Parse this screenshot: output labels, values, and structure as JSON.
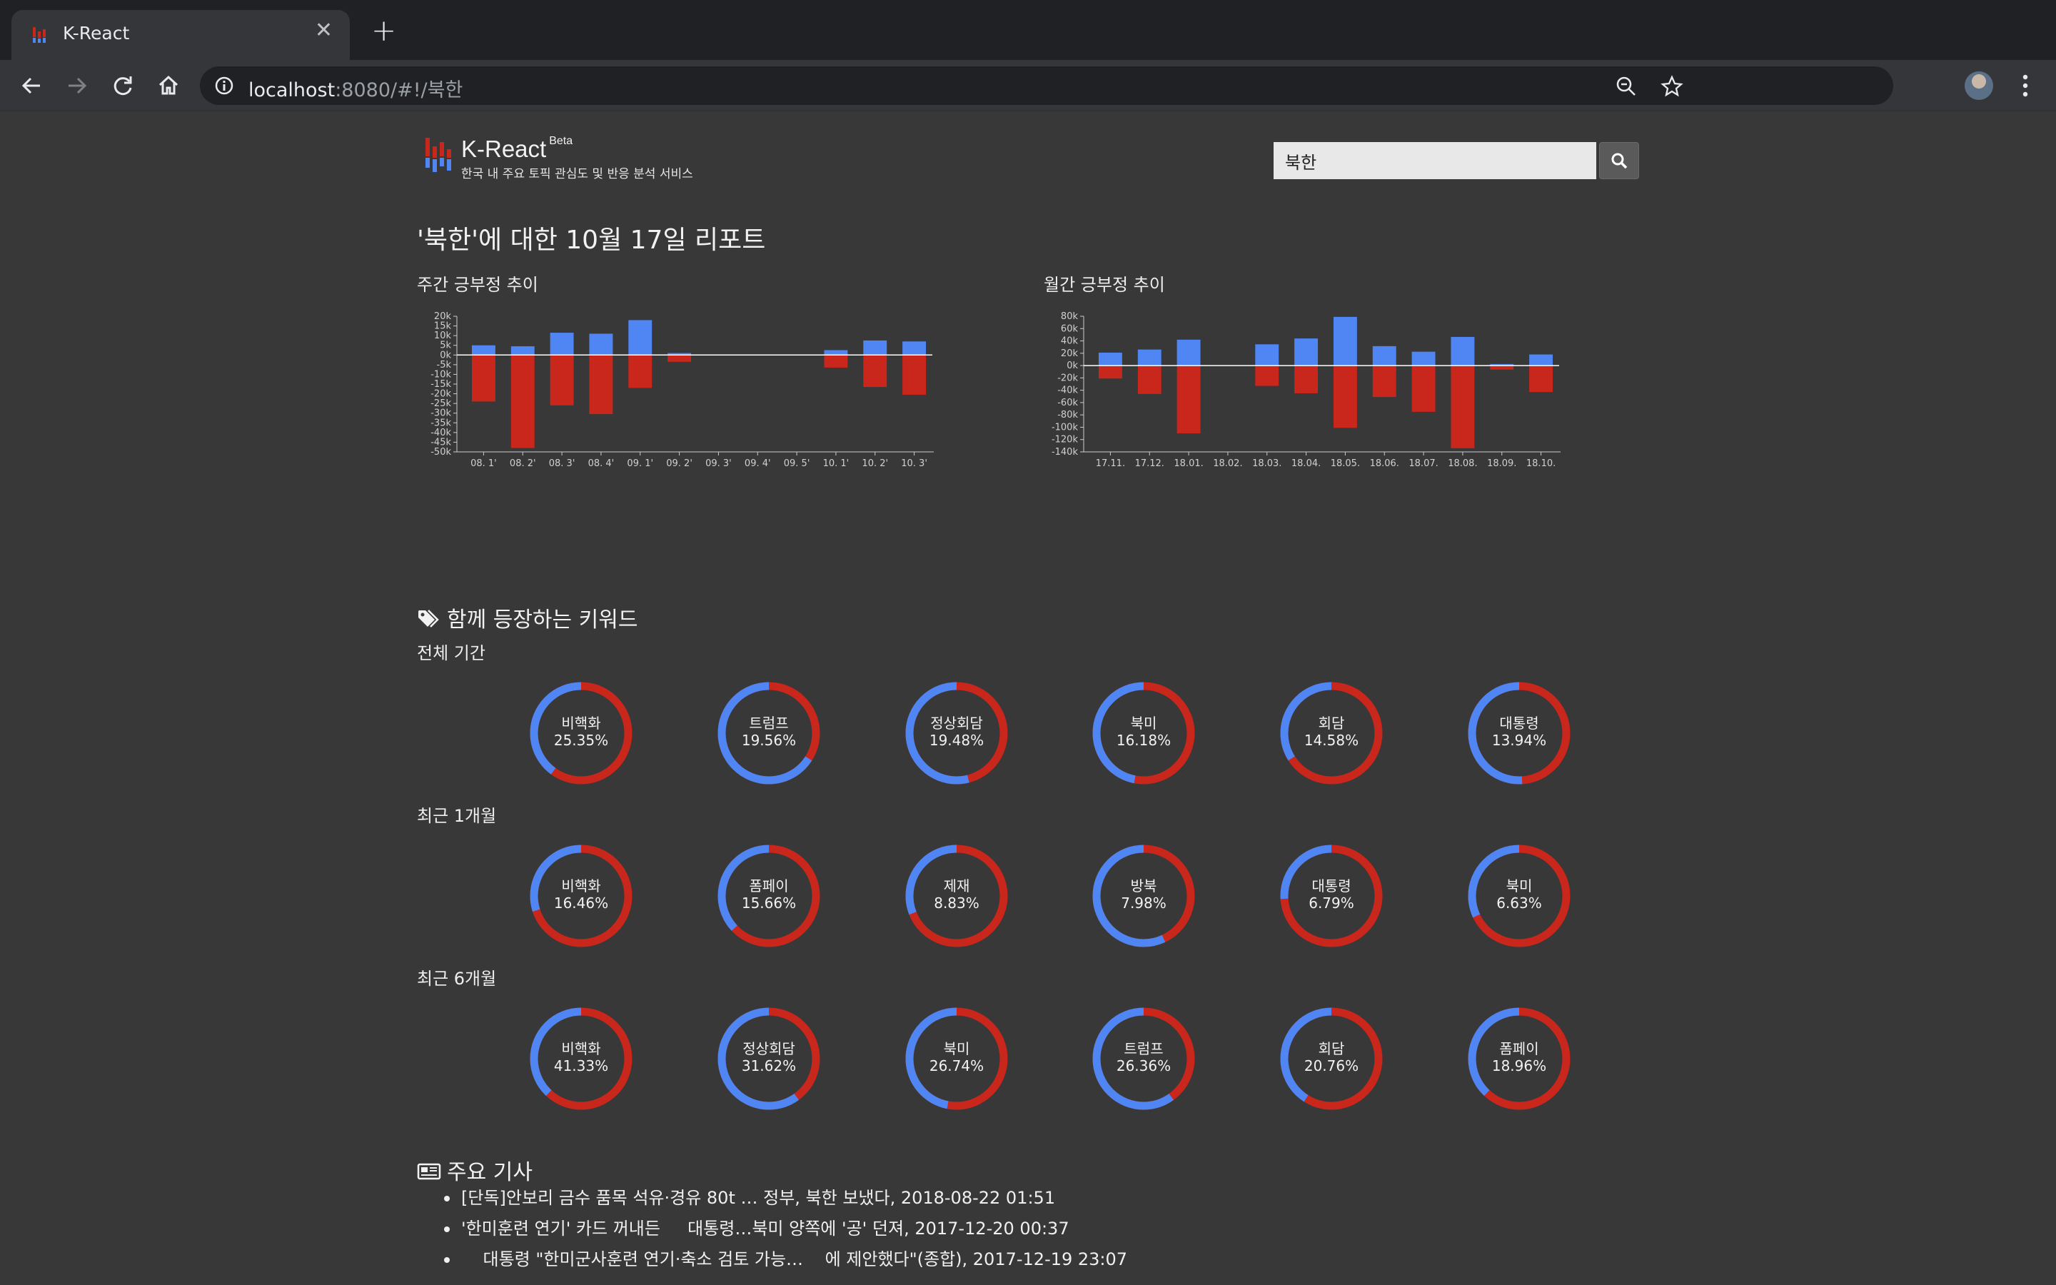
{
  "browser": {
    "tab_title": "K-React",
    "tab_close": "✕",
    "new_tab": "+",
    "url_host": "localhost",
    "url_rest": ":8080/#!/북한"
  },
  "header": {
    "brand": "K-React",
    "beta": "Beta",
    "subtitle": "한국 내 주요 토픽 관심도 및 반응 분석 서비스",
    "search_value": "북한"
  },
  "report": {
    "title": "'북한'에 대한 10월 17일 리포트"
  },
  "colors": {
    "positive": "#4f86f3",
    "negative": "#c9261c",
    "background": "#383838"
  },
  "chart_data": [
    {
      "type": "bar",
      "title": "주간 긍부정 추이",
      "categories": [
        "08. 1'",
        "08. 2'",
        "08. 3'",
        "08. 4'",
        "09. 1'",
        "09. 2'",
        "09. 3'",
        "09. 4'",
        "09. 5'",
        "10. 1'",
        "10. 2'",
        "10. 3'"
      ],
      "series": [
        {
          "name": "positive",
          "values": [
            5000,
            4500,
            11500,
            11000,
            18000,
            1000,
            0,
            0,
            0,
            2500,
            7500,
            7000
          ]
        },
        {
          "name": "negative",
          "values": [
            -24000,
            -48000,
            -26000,
            -30500,
            -17000,
            -3500,
            0,
            0,
            0,
            -6500,
            -16500,
            -20500
          ]
        }
      ],
      "ylim": [
        -50000,
        20000
      ],
      "yticks": [
        "20k",
        "15k",
        "10k",
        "5k",
        "0k",
        "-5k",
        "-10k",
        "-15k",
        "-20k",
        "-25k",
        "-30k",
        "-35k",
        "-40k",
        "-45k",
        "-50k"
      ]
    },
    {
      "type": "bar",
      "title": "월간 긍부정 추이",
      "categories": [
        "17.11.",
        "17.12.",
        "18.01.",
        "18.02.",
        "18.03.",
        "18.04.",
        "18.05.",
        "18.06.",
        "18.07.",
        "18.08.",
        "18.09.",
        "18.10."
      ],
      "series": [
        {
          "name": "positive",
          "values": [
            21000,
            26000,
            42000,
            0,
            34500,
            44000,
            79000,
            31500,
            22500,
            46500,
            2500,
            18000
          ]
        },
        {
          "name": "negative",
          "values": [
            -21000,
            -46000,
            -110000,
            0,
            -33000,
            -45000,
            -101000,
            -51000,
            -75000,
            -134000,
            -6500,
            -43000
          ]
        }
      ],
      "ylim": [
        -140000,
        80000
      ],
      "yticks": [
        "80k",
        "60k",
        "40k",
        "20k",
        "0k",
        "-20k",
        "-40k",
        "-60k",
        "-80k",
        "-100k",
        "-120k",
        "-140k"
      ]
    }
  ],
  "keywords": {
    "title": "함께 등장하는 키워드",
    "periods": [
      {
        "label": "전체 기간",
        "items": [
          {
            "word": "비핵화",
            "pct": "25.35%",
            "positive_ratio": 0.4
          },
          {
            "word": "트럼프",
            "pct": "19.56%",
            "positive_ratio": 0.66
          },
          {
            "word": "정상회담",
            "pct": "19.48%",
            "positive_ratio": 0.54
          },
          {
            "word": "북미",
            "pct": "16.18%",
            "positive_ratio": 0.47
          },
          {
            "word": "회담",
            "pct": "14.58%",
            "positive_ratio": 0.34
          },
          {
            "word": "대통령",
            "pct": "13.94%",
            "positive_ratio": 0.51
          }
        ]
      },
      {
        "label": "최근 1개월",
        "items": [
          {
            "word": "비핵화",
            "pct": "16.46%",
            "positive_ratio": 0.3
          },
          {
            "word": "폼페이",
            "pct": "15.66%",
            "positive_ratio": 0.37
          },
          {
            "word": "제재",
            "pct": "8.83%",
            "positive_ratio": 0.31
          },
          {
            "word": "방북",
            "pct": "7.98%",
            "positive_ratio": 0.57
          },
          {
            "word": "대통령",
            "pct": "6.79%",
            "positive_ratio": 0.26
          },
          {
            "word": "북미",
            "pct": "6.63%",
            "positive_ratio": 0.32
          }
        ]
      },
      {
        "label": "최근 6개월",
        "items": [
          {
            "word": "비핵화",
            "pct": "41.33%",
            "positive_ratio": 0.38
          },
          {
            "word": "정상회담",
            "pct": "31.62%",
            "positive_ratio": 0.6
          },
          {
            "word": "북미",
            "pct": "26.74%",
            "positive_ratio": 0.47
          },
          {
            "word": "트럼프",
            "pct": "26.36%",
            "positive_ratio": 0.6
          },
          {
            "word": "회담",
            "pct": "20.76%",
            "positive_ratio": 0.41
          },
          {
            "word": "폼페이",
            "pct": "18.96%",
            "positive_ratio": 0.38
          }
        ]
      }
    ]
  },
  "articles": {
    "title": "주요 기사",
    "items": [
      "[단독]안보리 금수 품목 석유·경유 80t … 정부, 북한 보냈다, 2018-08-22 01:51",
      "'한미훈련 연기' 카드 꺼내든     대통령…북미 양쪽에 '공' 던져, 2017-12-20 00:37",
      "    대통령 \"한미군사훈련 연기·축소 검토 가능…    에 제안했다\"(종합), 2017-12-19 23:07"
    ]
  }
}
